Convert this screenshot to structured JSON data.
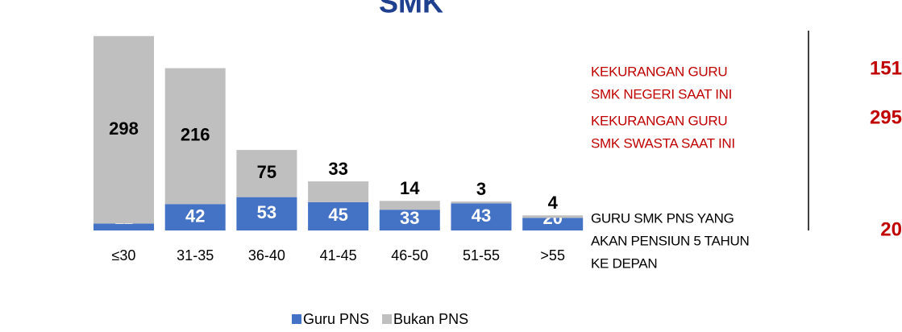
{
  "chart_data": {
    "type": "stacked_bar",
    "title": "SMK",
    "categories": [
      "≤30",
      "31-35",
      "36-40",
      "41-45",
      "46-50",
      "51-55",
      ">55"
    ],
    "series": [
      {
        "name": "Guru PNS",
        "color": "#4472c4",
        "values": [
          11,
          42,
          53,
          45,
          33,
          43,
          20
        ]
      },
      {
        "name": "Bukan PNS",
        "color": "#bfbfbf",
        "values": [
          298,
          216,
          75,
          33,
          14,
          3,
          4
        ]
      }
    ],
    "ylim": [
      0,
      310
    ],
    "annotations": [
      {
        "lines": [
          "KEKURANGAN GURU",
          "SMK NEGERI SAAT INI"
        ],
        "value": 151,
        "color": "#c00000"
      },
      {
        "lines": [
          "KEKURANGAN GURU",
          "SMK SWASTA SAAT INI"
        ],
        "value": 295,
        "color": "#c00000"
      },
      {
        "lines": [
          "GURU SMK PNS YANG",
          "AKAN PENSIUN 5 TAHUN",
          "KE DEPAN"
        ],
        "value": 20,
        "color": "#000000"
      }
    ]
  }
}
